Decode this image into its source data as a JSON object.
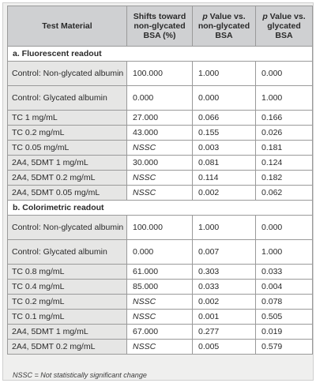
{
  "headers": {
    "material": "Test Material",
    "shifts": "Shifts toward non-glycated BSA (%)",
    "p_non_prefix": "p",
    "p_non_rest": " Value vs. non-glycated BSA",
    "p_gly_prefix": "p",
    "p_gly_rest": " Value vs. glycated BSA"
  },
  "sections": [
    {
      "title": "a. Fluorescent readout",
      "rows": [
        {
          "material": "Control: Non-glycated albumin",
          "shift": "100.000",
          "p_non": "1.000",
          "p_gly": "0.000"
        },
        {
          "material": "Control: Glycated albumin",
          "shift": "0.000",
          "p_non": "0.000",
          "p_gly": "1.000"
        },
        {
          "material": "TC 1 mg/mL",
          "shift": "27.000",
          "p_non": "0.066",
          "p_gly": "0.166"
        },
        {
          "material": "TC 0.2 mg/mL",
          "shift": "43.000",
          "p_non": "0.155",
          "p_gly": "0.026"
        },
        {
          "material": "TC 0.05 mg/mL",
          "shift": "NSSC",
          "p_non": "0.003",
          "p_gly": "0.181"
        },
        {
          "material": "2A4, 5DMT 1 mg/mL",
          "shift": "30.000",
          "p_non": "0.081",
          "p_gly": "0.124"
        },
        {
          "material": "2A4, 5DMT 0.2 mg/mL",
          "shift": "NSSC",
          "p_non": "0.114",
          "p_gly": "0.182"
        },
        {
          "material": "2A4, 5DMT 0.05 mg/mL",
          "shift": "NSSC",
          "p_non": "0.002",
          "p_gly": "0.062"
        }
      ]
    },
    {
      "title": "b. Colorimetric readout",
      "rows": [
        {
          "material": "Control: Non-glycated albumin",
          "shift": "100.000",
          "p_non": "1.000",
          "p_gly": "0.000"
        },
        {
          "material": "Control: Glycated albumin",
          "shift": "0.000",
          "p_non": "0.007",
          "p_gly": "1.000"
        },
        {
          "material": "TC 0.8 mg/mL",
          "shift": "61.000",
          "p_non": "0.303",
          "p_gly": "0.033"
        },
        {
          "material": "TC 0.4 mg/mL",
          "shift": "85.000",
          "p_non": "0.033",
          "p_gly": "0.004"
        },
        {
          "material": "TC 0.2 mg/mL",
          "shift": "NSSC",
          "p_non": "0.002",
          "p_gly": "0.078"
        },
        {
          "material": "TC 0.1 mg/mL",
          "shift": "NSSC",
          "p_non": "0.001",
          "p_gly": "0.505"
        },
        {
          "material": "2A4, 5DMT 1 mg/mL",
          "shift": "67.000",
          "p_non": "0.277",
          "p_gly": "0.019"
        },
        {
          "material": "2A4, 5DMT 0.2 mg/mL",
          "shift": "NSSC",
          "p_non": "0.005",
          "p_gly": "0.579"
        }
      ]
    }
  ],
  "footnote": "NSSC = Not statistically significant change"
}
